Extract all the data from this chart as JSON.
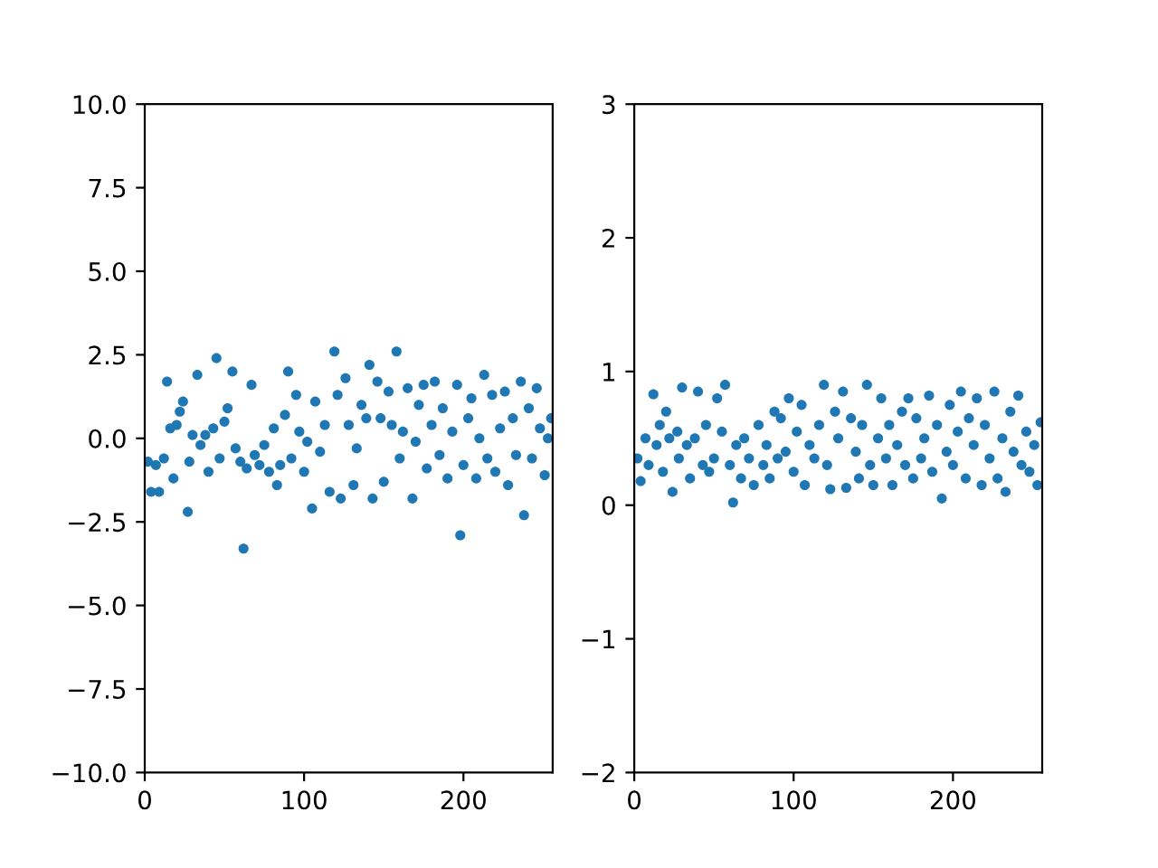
{
  "chart_data": [
    {
      "type": "scatter",
      "xlim": [
        0,
        256
      ],
      "ylim": [
        -10,
        10
      ],
      "xticks": [
        0,
        100,
        200
      ],
      "yticks": [
        {
          "value": -10,
          "label": "−10.0"
        },
        {
          "value": -7.5,
          "label": "−7.5"
        },
        {
          "value": -5,
          "label": "−5.0"
        },
        {
          "value": -2.5,
          "label": "−2.5"
        },
        {
          "value": 0,
          "label": "0.0"
        },
        {
          "value": 2.5,
          "label": "2.5"
        },
        {
          "value": 5,
          "label": "5.0"
        },
        {
          "value": 7.5,
          "label": "7.5"
        },
        {
          "value": 10,
          "label": "10.0"
        }
      ],
      "grid": false,
      "marker": "circle",
      "series": [
        {
          "color": "#1f77b4",
          "x": [
            2,
            4,
            7,
            9,
            12,
            14,
            16,
            18,
            20,
            22,
            24,
            27,
            28,
            30,
            33,
            35,
            38,
            40,
            43,
            45,
            47,
            50,
            52,
            55,
            57,
            60,
            62,
            64,
            67,
            69,
            72,
            75,
            78,
            81,
            83,
            85,
            88,
            90,
            92,
            95,
            97,
            100,
            102,
            105,
            107,
            110,
            113,
            116,
            119,
            121,
            123,
            126,
            128,
            131,
            133,
            136,
            139,
            141,
            143,
            146,
            148,
            150,
            153,
            155,
            158,
            160,
            162,
            165,
            168,
            170,
            172,
            175,
            177,
            180,
            182,
            185,
            187,
            190,
            193,
            196,
            198,
            200,
            203,
            205,
            208,
            210,
            213,
            215,
            218,
            220,
            223,
            226,
            228,
            231,
            233,
            236,
            238,
            241,
            243,
            246,
            248,
            251,
            253,
            255
          ],
          "values": [
            -0.7,
            -1.6,
            -0.8,
            -1.6,
            -0.6,
            1.7,
            0.3,
            -1.2,
            0.4,
            0.8,
            1.1,
            -2.2,
            -0.7,
            0.1,
            1.9,
            -0.2,
            0.1,
            -1.0,
            0.3,
            2.4,
            -0.6,
            0.5,
            0.9,
            2.0,
            -0.3,
            -0.7,
            -3.3,
            -0.9,
            1.6,
            -0.5,
            -0.8,
            -0.2,
            -1.0,
            0.3,
            -1.4,
            -0.8,
            0.7,
            2.0,
            -0.6,
            1.3,
            0.2,
            -1.0,
            -0.1,
            -2.1,
            1.1,
            -0.4,
            0.4,
            -1.6,
            2.6,
            1.3,
            -1.8,
            1.8,
            0.4,
            -1.4,
            -0.3,
            1.0,
            0.6,
            2.2,
            -1.8,
            1.7,
            0.6,
            -1.3,
            1.4,
            0.4,
            2.6,
            -0.6,
            0.2,
            1.5,
            -1.8,
            -0.1,
            1.0,
            1.6,
            -0.9,
            0.4,
            1.7,
            -0.5,
            0.9,
            -1.2,
            0.2,
            1.6,
            -2.9,
            -0.8,
            0.6,
            1.2,
            -1.2,
            0.0,
            1.9,
            -0.6,
            1.3,
            -1.0,
            0.3,
            1.4,
            -1.4,
            0.6,
            -0.5,
            1.7,
            -2.3,
            0.9,
            -0.6,
            1.5,
            0.3,
            -1.1,
            0.0,
            0.6
          ]
        }
      ]
    },
    {
      "type": "scatter",
      "xlim": [
        0,
        256
      ],
      "ylim": [
        -2,
        3
      ],
      "xticks": [
        0,
        100,
        200
      ],
      "yticks": [
        {
          "value": -2,
          "label": "−2"
        },
        {
          "value": -1,
          "label": "−1"
        },
        0,
        1,
        2,
        3
      ],
      "grid": false,
      "marker": "circle",
      "series": [
        {
          "color": "#1f77b4",
          "x": [
            2,
            4,
            7,
            9,
            12,
            14,
            16,
            18,
            20,
            22,
            24,
            27,
            28,
            30,
            33,
            35,
            38,
            40,
            43,
            45,
            47,
            50,
            52,
            55,
            57,
            60,
            62,
            64,
            67,
            69,
            72,
            75,
            78,
            81,
            83,
            85,
            88,
            90,
            92,
            95,
            97,
            100,
            102,
            105,
            107,
            110,
            113,
            116,
            119,
            121,
            123,
            126,
            128,
            131,
            133,
            136,
            139,
            141,
            143,
            146,
            148,
            150,
            153,
            155,
            158,
            160,
            162,
            165,
            168,
            170,
            172,
            175,
            177,
            180,
            182,
            185,
            187,
            190,
            193,
            196,
            198,
            200,
            203,
            205,
            208,
            210,
            213,
            215,
            218,
            220,
            223,
            226,
            228,
            231,
            233,
            236,
            238,
            241,
            243,
            246,
            248,
            251,
            253,
            255
          ],
          "values": [
            0.35,
            0.18,
            0.5,
            0.3,
            0.83,
            0.45,
            0.6,
            0.25,
            0.7,
            0.5,
            0.1,
            0.55,
            0.35,
            0.88,
            0.45,
            0.2,
            0.5,
            0.85,
            0.3,
            0.6,
            0.25,
            0.35,
            0.8,
            0.55,
            0.9,
            0.3,
            0.02,
            0.45,
            0.2,
            0.5,
            0.35,
            0.15,
            0.6,
            0.3,
            0.45,
            0.2,
            0.7,
            0.35,
            0.65,
            0.4,
            0.8,
            0.25,
            0.55,
            0.75,
            0.15,
            0.45,
            0.35,
            0.6,
            0.9,
            0.3,
            0.12,
            0.7,
            0.5,
            0.85,
            0.13,
            0.65,
            0.4,
            0.2,
            0.6,
            0.9,
            0.3,
            0.15,
            0.5,
            0.8,
            0.35,
            0.6,
            0.15,
            0.45,
            0.7,
            0.3,
            0.8,
            0.2,
            0.65,
            0.35,
            0.5,
            0.82,
            0.25,
            0.6,
            0.05,
            0.4,
            0.75,
            0.3,
            0.55,
            0.85,
            0.2,
            0.65,
            0.45,
            0.8,
            0.15,
            0.6,
            0.35,
            0.85,
            0.2,
            0.5,
            0.1,
            0.7,
            0.4,
            0.82,
            0.3,
            0.55,
            0.25,
            0.45,
            0.15,
            0.62
          ]
        }
      ]
    }
  ]
}
